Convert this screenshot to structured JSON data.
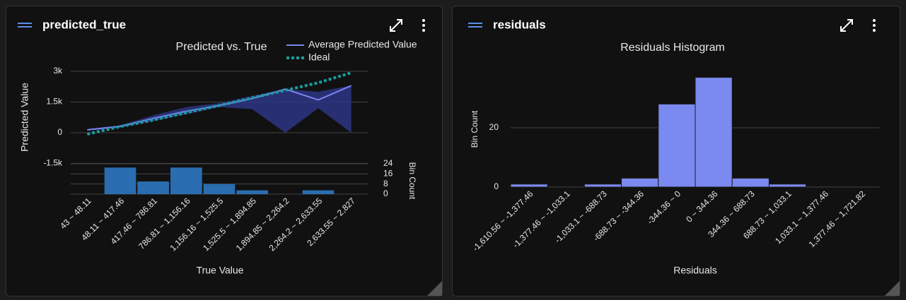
{
  "panel_titles": [
    "predicted_true",
    "residuals"
  ],
  "chart_data": [
    {
      "type": "line",
      "title": "Predicted vs. True",
      "x_label": "True Value",
      "y_label": "Predicted Value",
      "y2_label": "Bin Count",
      "categories": [
        "43 ~ 48.11",
        "48.11 ~ 417.46",
        "417.46 ~ 786.81",
        "786.81 ~ 1,156.16",
        "1,156.16 ~ 1,525.5",
        "1,525.5 ~ 1,894.85",
        "1,894.85 ~ 2,264.2",
        "2,264.2 ~ 2,633.55",
        "2,633.55 ~ 2,827"
      ],
      "series": [
        {
          "name": "Average Predicted Value",
          "color": "#7b86f0",
          "style": "solid",
          "values": [
            140,
            310,
            700,
            1050,
            1330,
            1670,
            2130,
            1600,
            2300
          ]
        },
        {
          "name": "Ideal",
          "color": "#1a9c9c",
          "style": "dotted",
          "values": [
            -70,
            300,
            620,
            980,
            1330,
            1700,
            2070,
            2440,
            2930
          ]
        }
      ],
      "band": {
        "color": "#2e3585",
        "lower": [
          100,
          260,
          560,
          900,
          1250,
          1150,
          0,
          1200,
          0
        ],
        "upper": [
          180,
          360,
          850,
          1250,
          1450,
          1800,
          2130,
          2000,
          2300
        ]
      },
      "bin_counts": {
        "color": "#2a6db0",
        "values": [
          0,
          21,
          10,
          21,
          8,
          3,
          0,
          3,
          0
        ]
      },
      "ylim": [
        -3000,
        3000
      ],
      "yticks": [
        {
          "value": 3000,
          "label": "3k"
        },
        {
          "value": 1500,
          "label": "1.5k"
        },
        0,
        {
          "value": -1500,
          "label": "-1.5k"
        }
      ],
      "y2lim": [
        0,
        24
      ],
      "y2ticks": [
        24,
        16,
        8,
        0
      ],
      "grid": true
    },
    {
      "type": "bar",
      "title": "Residuals Histogram",
      "x_label": "Residuals",
      "y_label": "Bin Count",
      "categories": [
        "-1,610.56 ~ -1,377.46",
        "-1,377.46 ~ -1,033.1",
        "-1,033.1 ~ -688.73",
        "-688.73 ~ -344.36",
        "-344.36 ~ 0",
        "0 ~ 344.36",
        "344.36 ~ 688.73",
        "688.73 ~ 1,033.1",
        "1,033.1 ~ 1,377.46",
        "1,377.46 ~ 1,721.82"
      ],
      "values": [
        1,
        0,
        1,
        3,
        28,
        37,
        3,
        1,
        0,
        0
      ],
      "color": "#7b8af0",
      "ylim": [
        0,
        40
      ],
      "yticks": [
        0,
        20
      ],
      "grid": true
    }
  ]
}
